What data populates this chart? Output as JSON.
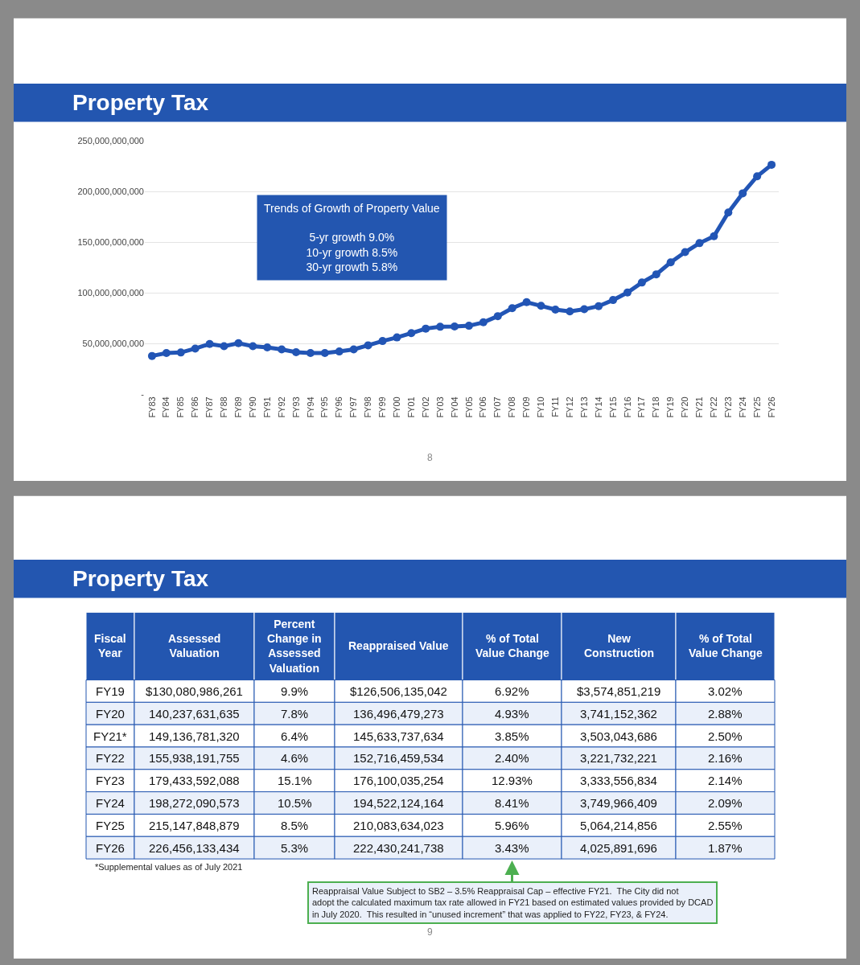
{
  "chart_data": [
    {
      "type": "line",
      "title": "Property Tax",
      "categories": [
        "FY83",
        "FY84",
        "FY85",
        "FY86",
        "FY87",
        "FY88",
        "FY89",
        "FY90",
        "FY91",
        "FY92",
        "FY93",
        "FY94",
        "FY95",
        "FY96",
        "FY97",
        "FY98",
        "FY99",
        "FY00",
        "FY01",
        "FY02",
        "FY03",
        "FY04",
        "FY05",
        "FY06",
        "FY07",
        "FY08",
        "FY09",
        "FY10",
        "FY11",
        "FY12",
        "FY13",
        "FY14",
        "FY15",
        "FY16",
        "FY17",
        "FY18",
        "FY19",
        "FY20",
        "FY21",
        "FY22",
        "FY23",
        "FY24",
        "FY25",
        "FY26"
      ],
      "series": [
        {
          "color": "#2255b5",
          "values": [
            37700000000,
            40600000000,
            41100000000,
            45000000000,
            49500000000,
            47400000000,
            50300000000,
            47400000000,
            46100000000,
            44200000000,
            41400000000,
            40600000000,
            40600000000,
            42100000000,
            44200000000,
            48200000000,
            52400000000,
            56000000000,
            60200000000,
            64700000000,
            66500000000,
            66800000000,
            67500000000,
            70900000000,
            77000000000,
            84800000000,
            90800000000,
            87200000000,
            83500000000,
            81700000000,
            83800000000,
            86900000000,
            92900000000,
            100300000000,
            110200000000,
            118300000000,
            130100000000,
            140200000000,
            149100000000,
            155900000000,
            179400000000,
            198300000000,
            215100000000,
            226500000000
          ]
        }
      ],
      "ylim": [
        0,
        250000000000
      ],
      "yticks": [
        {
          "value": 0,
          "label": "-"
        },
        {
          "value": 50000000000,
          "label": "50,000,000,000"
        },
        {
          "value": 100000000000,
          "label": "100,000,000,000"
        },
        {
          "value": 150000000000,
          "label": "150,000,000,000"
        },
        {
          "value": 200000000000,
          "label": "200,000,000,000"
        },
        {
          "value": 250000000000,
          "label": "250,000,000,000"
        }
      ],
      "grid": "y",
      "marker": "circle",
      "line_style": "solid",
      "annotations": [
        "Trends of Growth of Property Value\n\n5-yr growth 9.0%\n10-yr growth 8.5%\n30-yr growth 5.8%",
        "8"
      ]
    },
    {
      "type": "heatmap",
      "title": "Property Tax",
      "ylabel": "Fiscal Year",
      "categories": [
        "Assessed Valuation",
        "Percent Change in Assessed Valuation",
        "Reappraised Value",
        "% of Total Value Change",
        "New Construction",
        "% of Total Value Change"
      ],
      "y_categories": [
        "FY19",
        "FY20",
        "FY21*",
        "FY22",
        "FY23",
        "FY24",
        "FY25",
        "FY26"
      ],
      "cells": [
        [
          130080986261,
          9.9,
          126506135042,
          6.92,
          3574851219,
          3.02
        ],
        [
          140237631635,
          7.8,
          136496479273,
          4.93,
          3741152362,
          2.88
        ],
        [
          149136781320,
          6.4,
          145633737634,
          3.85,
          3503043686,
          2.5
        ],
        [
          155938191755,
          4.6,
          152716459534,
          2.4,
          3221732221,
          2.16
        ],
        [
          179433592088,
          15.1,
          176100035254,
          12.93,
          3333556834,
          2.14
        ],
        [
          198272090573,
          10.5,
          194522124164,
          8.41,
          3749966409,
          2.09
        ],
        [
          215147848879,
          8.5,
          210083634023,
          5.96,
          5064214856,
          2.55
        ],
        [
          226456133434,
          5.3,
          222430241738,
          3.43,
          4025891696,
          1.87
        ]
      ],
      "cell_labels": [
        [
          "$130,080,986,261",
          "9.9%",
          "$126,506,135,042",
          "6.92%",
          "$3,574,851,219",
          "3.02%"
        ],
        [
          "140,237,631,635",
          "7.8%",
          "136,496,479,273",
          "4.93%",
          "3,741,152,362",
          "2.88%"
        ],
        [
          "149,136,781,320",
          "6.4%",
          "145,633,737,634",
          "3.85%",
          "3,503,043,686",
          "2.50%"
        ],
        [
          "155,938,191,755",
          "4.6%",
          "152,716,459,534",
          "2.40%",
          "3,221,732,221",
          "2.16%"
        ],
        [
          "179,433,592,088",
          "15.1%",
          "176,100,035,254",
          "12.93%",
          "3,333,556,834",
          "2.14%"
        ],
        [
          "198,272,090,573",
          "10.5%",
          "194,522,124,164",
          "8.41%",
          "3,749,966,409",
          "2.09%"
        ],
        [
          "215,147,848,879",
          "8.5%",
          "210,083,634,023",
          "5.96%",
          "5,064,214,856",
          "2.55%"
        ],
        [
          "226,456,133,434",
          "5.3%",
          "222,430,241,738",
          "3.43%",
          "4,025,891,696",
          "1.87%"
        ]
      ],
      "annotations": [
        "*Supplemental values as of July 2021",
        "Reappraisal Value Subject to SB2 – 3.5% Reappraisal Cap – effective FY21.  The City did not adopt the calculated maximum tax rate allowed in FY21 based on estimated values provided by DCAD in July 2020.  This resulted in “unused increment” that was applied to FY22, FY23, & FY24.",
        "9"
      ]
    }
  ]
}
